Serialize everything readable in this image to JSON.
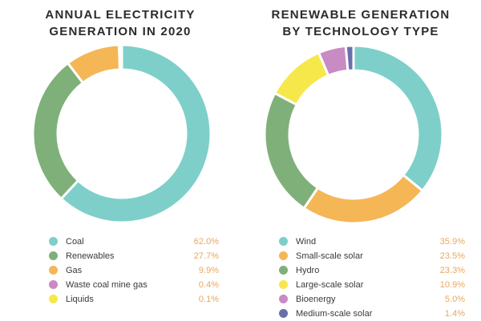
{
  "chart_data": [
    {
      "type": "pie",
      "title": "ANNUAL ELECTRICITY GENERATION IN 2020",
      "title_lines": [
        "ANNUAL ELECTRICITY",
        "GENERATION IN 2020"
      ],
      "legend_position": "bottom",
      "slices": [
        {
          "label": "Coal",
          "value": 62.0,
          "display": "62.0%",
          "color": "#7ecfca"
        },
        {
          "label": "Renewables",
          "value": 27.7,
          "display": "27.7%",
          "color": "#7fb07a"
        },
        {
          "label": "Gas",
          "value": 9.9,
          "display": "9.9%",
          "color": "#f5b656"
        },
        {
          "label": "Waste coal mine gas",
          "value": 0.4,
          "display": "0.4%",
          "color": "#c98bc4"
        },
        {
          "label": "Liquids",
          "value": 0.1,
          "display": "0.1%",
          "color": "#f6e84a"
        }
      ]
    },
    {
      "type": "pie",
      "title": "RENEWABLE GENERATION BY TECHNOLOGY TYPE",
      "title_lines": [
        "RENEWABLE GENERATION",
        "BY TECHNOLOGY TYPE"
      ],
      "legend_position": "bottom",
      "slices": [
        {
          "label": "Wind",
          "value": 35.9,
          "display": "35.9%",
          "color": "#7ecfca"
        },
        {
          "label": "Small-scale solar",
          "value": 23.5,
          "display": "23.5%",
          "color": "#f5b656"
        },
        {
          "label": "Hydro",
          "value": 23.3,
          "display": "23.3%",
          "color": "#7fb07a"
        },
        {
          "label": "Large-scale solar",
          "value": 10.9,
          "display": "10.9%",
          "color": "#f6e84a"
        },
        {
          "label": "Bioenergy",
          "value": 5.0,
          "display": "5.0%",
          "color": "#c98bc4"
        },
        {
          "label": "Medium-scale solar",
          "value": 1.4,
          "display": "1.4%",
          "color": "#6a6fa8"
        }
      ]
    }
  ]
}
